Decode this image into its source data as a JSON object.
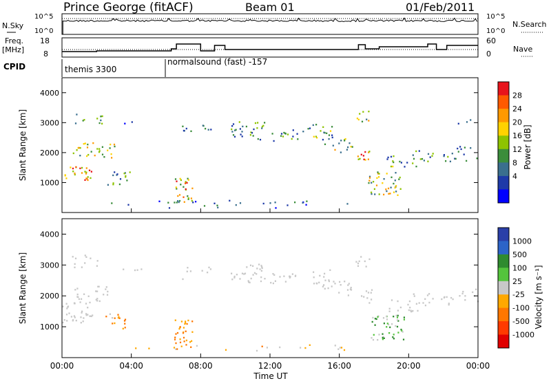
{
  "header": {
    "station": "Prince George (fitACF)",
    "beam": "Beam 01",
    "date": "01/Feb/2011"
  },
  "noise_panel": {
    "left_label": "N.Sky",
    "right_label": "N.Search",
    "left_ticks": [
      "10^5",
      "10^0"
    ],
    "right_ticks": [
      "10^5",
      "10^0"
    ]
  },
  "freq_panel": {
    "left_label_1": "Freq.",
    "left_label_2": "[MHz]",
    "right_label": "Nave",
    "left_ticks": [
      "18",
      "8"
    ],
    "right_ticks": [
      "60",
      "0"
    ]
  },
  "cpid": {
    "label": "CPID",
    "segments": [
      {
        "start_hour": 0,
        "text": "themis 3300"
      },
      {
        "start_hour": 6,
        "text": "normalsound (fast) -157"
      }
    ]
  },
  "chart_data": [
    {
      "type": "heatmap",
      "panel": "power",
      "ylabel": "Slant Range [km]",
      "xlabel": "",
      "ylim": [
        0,
        4500
      ],
      "yticks": [
        "1000",
        "2000",
        "3000",
        "4000"
      ],
      "colorbar_label": "Power [dB]",
      "colorbar_ticks": [
        "28",
        "24",
        "20",
        "16",
        "12",
        "8",
        "4"
      ],
      "colorbar_colors": [
        "#e8141c",
        "#ff5a00",
        "#ff9900",
        "#ffd200",
        "#8ec300",
        "#3b8d3b",
        "#3a6f8e",
        "#1e3aa8",
        "#0000ff"
      ]
    },
    {
      "type": "heatmap",
      "panel": "velocity",
      "ylabel": "Slant Range [km]",
      "xlabel": "Time UT",
      "ylim": [
        0,
        4500
      ],
      "yticks": [
        "1000",
        "2000",
        "3000",
        "4000"
      ],
      "xticks": [
        "00:00",
        "04:00",
        "08:00",
        "12:00",
        "16:00",
        "20:00",
        "00:00"
      ],
      "colorbar_label": "Velocity [m s⁻¹]",
      "colorbar_ticks": [
        "1000",
        "500",
        "100",
        "25",
        "-25",
        "-100",
        "-500",
        "-1000"
      ],
      "colorbar_colors": [
        "#2a3fa8",
        "#2c64c8",
        "#2f8b2f",
        "#54c43c",
        "#c8c8c8",
        "#ffa800",
        "#ff7700",
        "#ff3a00",
        "#e00000"
      ]
    }
  ],
  "colors": {
    "scatter_grey": "#c8c8c8",
    "frame": "#000000"
  }
}
